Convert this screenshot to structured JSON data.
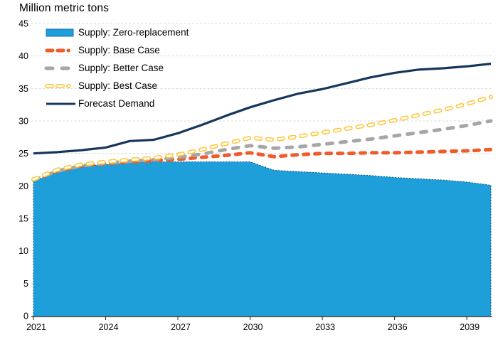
{
  "title": "Million metric tons",
  "chart_data": {
    "type": "area",
    "subtype": "area + dashed and solid line combo chart",
    "title": "Million metric tons",
    "xlabel": "",
    "ylabel": "Million metric tons",
    "xlim": [
      2021,
      2040
    ],
    "ylim": [
      0,
      45
    ],
    "grid": "horizontal dashed light gray",
    "legend_position": "top-left inside plot",
    "x_years": [
      2021,
      2022,
      2023,
      2024,
      2025,
      2026,
      2027,
      2028,
      2029,
      2030,
      2031,
      2032,
      2033,
      2034,
      2035,
      2036,
      2037,
      2038,
      2039,
      2040
    ],
    "x_tick_years": [
      2021,
      2024,
      2027,
      2030,
      2033,
      2036,
      2039
    ],
    "x_tick_labels": [
      "2021",
      "2024",
      "2027",
      "2030",
      "2033",
      "2036",
      "2039"
    ],
    "y_ticks": [
      0,
      5,
      10,
      15,
      20,
      25,
      30,
      35,
      40,
      45
    ],
    "series": [
      {
        "name": "Supply: Zero-replacement",
        "type": "area",
        "color": "#1E9FD9",
        "edge_color": "#14537F",
        "values": [
          20.7,
          22.2,
          23.0,
          23.3,
          23.6,
          23.7,
          23.7,
          23.7,
          23.7,
          23.7,
          22.4,
          22.2,
          22.0,
          21.8,
          21.6,
          21.3,
          21.1,
          20.9,
          20.6,
          20.1
        ]
      },
      {
        "name": "Supply: Base Case",
        "type": "line-dashed",
        "color": "#F15A29",
        "stroke_width": 5,
        "dash": "7 9",
        "values": [
          20.9,
          22.3,
          23.1,
          23.4,
          23.7,
          23.9,
          24.1,
          24.4,
          24.7,
          25.1,
          24.5,
          24.8,
          25.0,
          25.0,
          25.1,
          25.1,
          25.2,
          25.3,
          25.4,
          25.6
        ]
      },
      {
        "name": "Supply: Better Case",
        "type": "line-dashed",
        "color": "#A6A6A6",
        "stroke_width": 5,
        "dash": "8 11",
        "values": [
          20.9,
          22.3,
          23.1,
          23.5,
          23.8,
          24.0,
          24.4,
          24.9,
          25.6,
          26.2,
          25.8,
          26.0,
          26.4,
          26.8,
          27.2,
          27.7,
          28.2,
          28.7,
          29.3,
          30.0
        ]
      },
      {
        "name": "Supply: Best Case",
        "type": "line-dashed-outlined",
        "color": "#FFC432",
        "inner_color": "#FFFFFF",
        "stroke_width": 6,
        "dash": "6 10",
        "values": [
          21.0,
          22.5,
          23.3,
          23.7,
          24.0,
          24.3,
          24.8,
          25.6,
          26.5,
          27.4,
          27.1,
          27.6,
          28.2,
          28.8,
          29.4,
          30.1,
          30.9,
          31.7,
          32.6,
          33.7
        ]
      },
      {
        "name": "Forecast Demand",
        "type": "line-solid",
        "color": "#16365C",
        "stroke_width": 3.2,
        "values": [
          25.0,
          25.2,
          25.5,
          25.9,
          26.9,
          27.1,
          28.1,
          29.4,
          30.8,
          32.1,
          33.2,
          34.2,
          34.9,
          35.8,
          36.7,
          37.4,
          37.9,
          38.1,
          38.4,
          38.8
        ]
      }
    ],
    "style_colors": {
      "gridline": "#D9D9D9",
      "axis_line": "#262626",
      "tick_label": "#000000"
    }
  }
}
